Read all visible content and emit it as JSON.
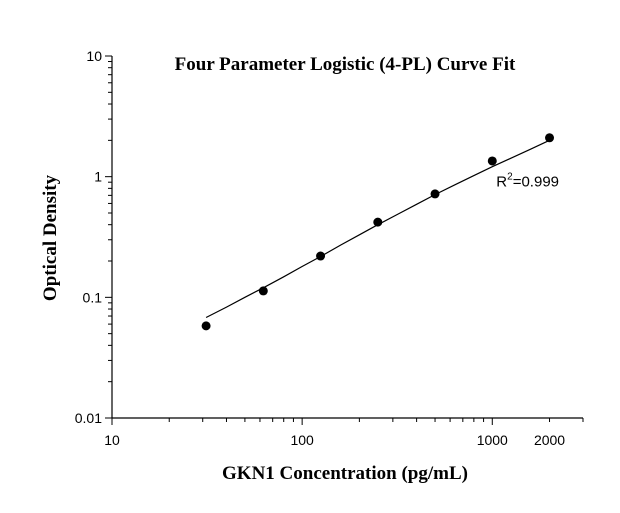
{
  "chart_data": {
    "type": "scatter",
    "title": "Four Parameter Logistic (4-PL) Curve Fit",
    "xlabel": "GKN1 Concentration (pg/mL)",
    "ylabel": "Optical Density",
    "xscale": "log",
    "yscale": "log",
    "xlim": [
      10,
      3000
    ],
    "ylim": [
      0.01,
      10
    ],
    "x_ticks": [
      10,
      100,
      1000,
      2000
    ],
    "x_tick_labels": [
      "10",
      "100",
      "1000",
      "2000"
    ],
    "y_ticks": [
      0.01,
      0.1,
      1,
      10
    ],
    "y_tick_labels": [
      "0.01",
      "0.1",
      "1",
      "10"
    ],
    "grid": false,
    "series": [
      {
        "x": [
          31.25,
          62.5,
          125,
          250,
          500,
          1000,
          2000
        ],
        "y": [
          0.058,
          0.113,
          0.22,
          0.42,
          0.72,
          1.35,
          2.1
        ],
        "marker_color": "#000000"
      }
    ],
    "fit_curve": {
      "model": "4-PL",
      "x": [
        31.25,
        40,
        50,
        62.5,
        80,
        100,
        125,
        160,
        200,
        250,
        320,
        400,
        500,
        640,
        800,
        1000,
        1250,
        1600,
        2000
      ],
      "y": [
        0.068,
        0.083,
        0.1,
        0.12,
        0.148,
        0.18,
        0.218,
        0.272,
        0.33,
        0.4,
        0.49,
        0.59,
        0.71,
        0.86,
        1.02,
        1.21,
        1.42,
        1.7,
        2.0
      ],
      "color": "#000000"
    },
    "annotation": {
      "prefix": "R",
      "sup": "2",
      "suffix": "=0.999",
      "x": 1050,
      "y": 0.83
    }
  }
}
